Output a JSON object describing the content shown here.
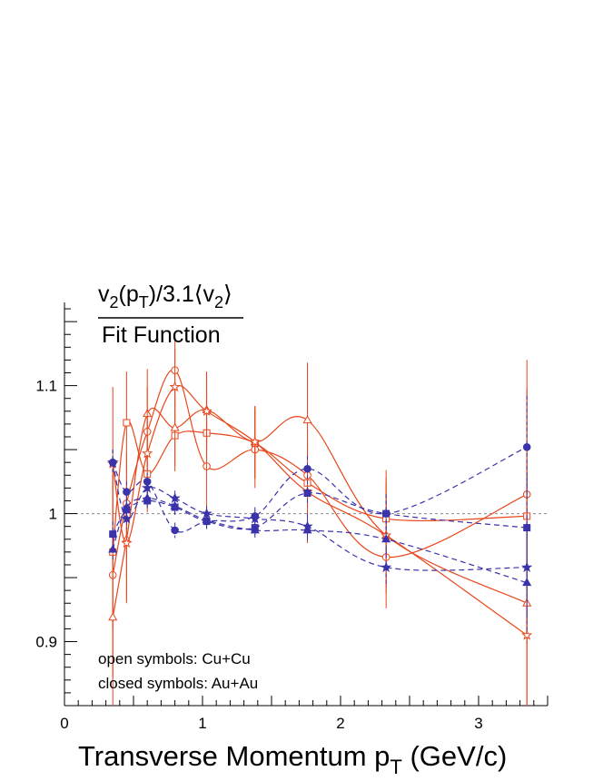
{
  "chart_data": {
    "type": "line",
    "ylabel_num_main": "v",
    "ylabel_num_sub1": "2",
    "ylabel_num_mid": "(p",
    "ylabel_num_sub2": "T",
    "ylabel_num_tail": ")/3.1⟨v",
    "ylabel_num_sub3": "2",
    "ylabel_num_end": "⟩",
    "ylabel_den": "Fit Function",
    "xlabel_main": "Transverse Momentum p",
    "xlabel_sub": "T",
    "xlabel_tail": " (GeV/c)",
    "xlim": [
      0,
      3.5
    ],
    "ylim": [
      0.85,
      1.165
    ],
    "xticks": [
      0,
      1,
      2,
      3
    ],
    "xtick_labels": [
      "0",
      "1",
      "2",
      "3"
    ],
    "yticks": [
      0.9,
      1.0,
      1.1
    ],
    "ytick_labels": [
      "0.9",
      "1",
      "1.1"
    ],
    "reference_line": 1.0,
    "annotations": [
      "open symbols: Cu+Cu",
      "closed symbols: Au+Au"
    ],
    "colors": {
      "cu": "#e8471c",
      "au": "#3b33aa",
      "ref": "#888888"
    },
    "series": [
      {
        "group": "Cu+Cu",
        "marker": "circle-open",
        "x": [
          0.35,
          0.45,
          0.6,
          0.8,
          1.03,
          1.38,
          1.76,
          2.33,
          3.35
        ],
        "y": [
          0.952,
          1.008,
          1.064,
          1.112,
          1.037,
          1.05,
          1.03,
          0.966,
          1.015
        ],
        "err": [
          0.08,
          0.04,
          0.035,
          0.028,
          0.035,
          0.03,
          0.04,
          0.04,
          0.105
        ]
      },
      {
        "group": "Cu+Cu",
        "marker": "square-open",
        "x": [
          0.35,
          0.45,
          0.6,
          0.8,
          1.03,
          1.38,
          1.76,
          2.33,
          3.35
        ],
        "y": [
          0.97,
          1.071,
          1.031,
          1.061,
          1.063,
          1.055,
          1.024,
          0.996,
          0.998
        ],
        "err": [
          0.06,
          0.04,
          0.03,
          0.028,
          0.03,
          0.028,
          0.035,
          0.038,
          0.1
        ]
      },
      {
        "group": "Cu+Cu",
        "marker": "triangle-open",
        "x": [
          0.35,
          0.45,
          0.6,
          0.8,
          1.03,
          1.38,
          1.76,
          2.33,
          3.35
        ],
        "y": [
          0.919,
          0.98,
          1.078,
          1.067,
          1.081,
          1.056,
          1.073,
          0.983,
          0.93
        ],
        "err": [
          0.07,
          0.05,
          0.035,
          0.03,
          0.03,
          0.028,
          0.045,
          0.045,
          0.11
        ]
      },
      {
        "group": "Cu+Cu",
        "marker": "star-open",
        "x": [
          0.35,
          0.45,
          0.6,
          0.8,
          1.03,
          1.38,
          1.76,
          2.33,
          3.35
        ],
        "y": [
          1.039,
          0.977,
          1.047,
          1.099,
          1.08,
          1.056,
          1.017,
          0.983,
          0.905
        ],
        "err": [
          0.06,
          0.045,
          0.035,
          0.03,
          0.03,
          0.028,
          0.04,
          0.04,
          0.1
        ]
      },
      {
        "group": "Au+Au",
        "marker": "circle-filled",
        "x": [
          0.35,
          0.45,
          0.6,
          0.8,
          1.03,
          1.38,
          1.76,
          2.33,
          3.35
        ],
        "y": [
          1.04,
          1.017,
          1.025,
          0.987,
          0.994,
          0.998,
          1.035,
          1.0,
          1.052
        ],
        "err": [
          0.01,
          0.008,
          0.007,
          0.006,
          0.006,
          0.007,
          0.01,
          0.015,
          0.04
        ]
      },
      {
        "group": "Au+Au",
        "marker": "square-filled",
        "x": [
          0.35,
          0.45,
          0.6,
          0.8,
          1.03,
          1.38,
          1.76,
          2.33,
          3.35
        ],
        "y": [
          0.984,
          1.003,
          1.01,
          1.005,
          0.994,
          0.989,
          1.016,
          1.0,
          0.989
        ],
        "err": [
          0.01,
          0.008,
          0.007,
          0.006,
          0.006,
          0.007,
          0.01,
          0.015,
          0.04
        ]
      },
      {
        "group": "Au+Au",
        "marker": "triangle-filled",
        "x": [
          0.35,
          0.45,
          0.6,
          0.8,
          1.03,
          1.38,
          1.76,
          2.33,
          3.35
        ],
        "y": [
          0.972,
          1.005,
          1.012,
          1.006,
          0.995,
          0.987,
          0.987,
          0.98,
          0.946
        ],
        "err": [
          0.01,
          0.008,
          0.007,
          0.006,
          0.006,
          0.007,
          0.01,
          0.015,
          0.04
        ]
      },
      {
        "group": "Au+Au",
        "marker": "star-filled",
        "x": [
          0.35,
          0.45,
          0.6,
          0.8,
          1.03,
          1.38,
          1.76,
          2.33,
          3.35
        ],
        "y": [
          1.04,
          0.996,
          1.02,
          1.012,
          1.0,
          0.996,
          0.99,
          0.958,
          0.958
        ],
        "err": [
          0.01,
          0.008,
          0.007,
          0.006,
          0.006,
          0.007,
          0.01,
          0.015,
          0.04
        ]
      }
    ]
  }
}
